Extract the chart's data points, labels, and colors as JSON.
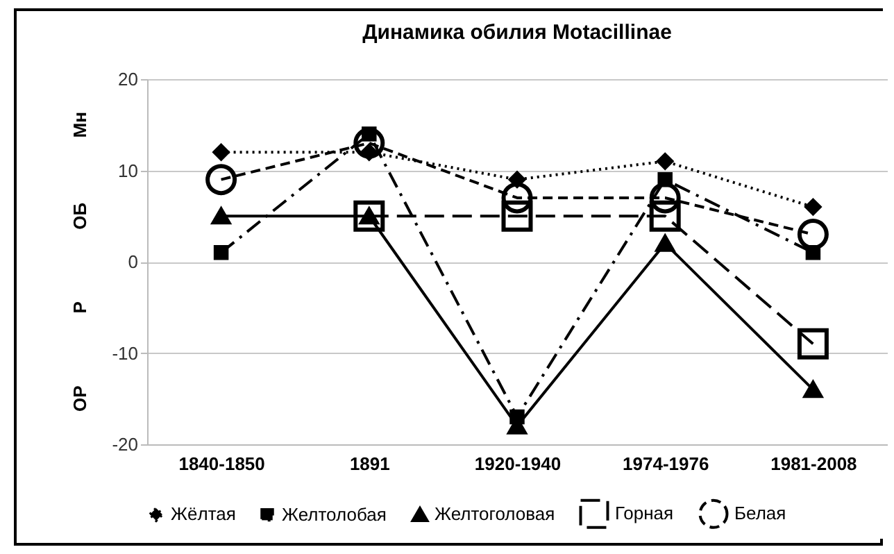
{
  "chart_data": {
    "type": "line",
    "title": "Динамика обилия Motacillinae",
    "categories": [
      "1840-1850",
      "1891",
      "1920-1940",
      "1974-1976",
      "1981-2008"
    ],
    "series": [
      {
        "name": "Жёлтая",
        "color": "#000000",
        "marker": "diamond",
        "line_style": "dotted",
        "values": [
          12,
          12,
          9,
          11,
          6
        ]
      },
      {
        "name": "Желтолобая",
        "color": "#000000",
        "marker": "square",
        "line_style": "dashdot",
        "values": [
          1,
          14,
          -17,
          9,
          1
        ]
      },
      {
        "name": "Желтоголовая",
        "color": "#000000",
        "marker": "triangle",
        "line_style": "solid",
        "values": [
          5,
          5,
          -18,
          2,
          -14
        ]
      },
      {
        "name": "Горная",
        "color": "#000000",
        "marker": "square",
        "line_style": "longdash",
        "values": [
          null,
          5,
          5,
          5,
          -9
        ]
      },
      {
        "name": "Белая",
        "color": "#000000",
        "marker": "circle",
        "line_style": "dashed",
        "values": [
          9,
          13,
          7,
          7,
          3
        ]
      }
    ],
    "ylim": [
      -20,
      20
    ],
    "yticks": [
      -20,
      -10,
      0,
      10,
      20
    ],
    "annotations": [
      "Мн",
      "ОБ",
      "Р",
      "ОР"
    ],
    "grid": "y",
    "legend": "bottom"
  }
}
